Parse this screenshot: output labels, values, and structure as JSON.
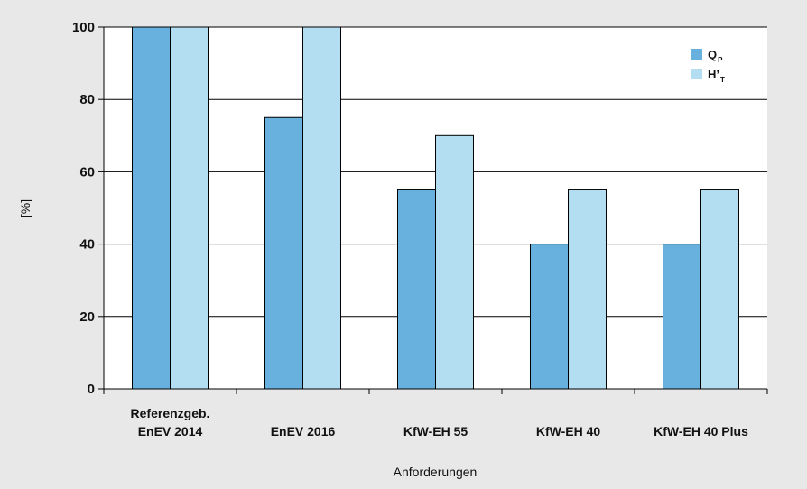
{
  "chart_data": {
    "type": "bar",
    "categories": [
      [
        "Referenzgeb.",
        "EnEV 2014"
      ],
      [
        "EnEV 2016"
      ],
      [
        "KfW-EH 55"
      ],
      [
        "KfW-EH 40"
      ],
      [
        "KfW-EH 40 Plus"
      ]
    ],
    "series": [
      {
        "name": "Q",
        "name_sub": "P",
        "color": "#68b1df",
        "values": [
          100,
          75,
          55,
          40,
          40
        ]
      },
      {
        "name": "H’",
        "name_sub": "T",
        "color": "#b3def2",
        "values": [
          100,
          100,
          70,
          55,
          55
        ]
      }
    ],
    "xlabel": "Anforderungen",
    "ylabel": "[%]",
    "ylim": [
      0,
      100
    ],
    "yticks": [
      0,
      20,
      40,
      60,
      80,
      100
    ],
    "grid": true,
    "legend": "top-right",
    "plot_background": "#ffffff",
    "page_background": "#e8e8e8"
  }
}
